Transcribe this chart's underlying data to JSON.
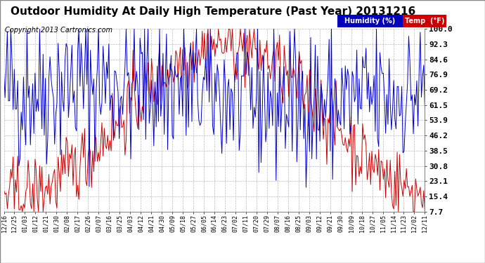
{
  "title": "Outdoor Humidity At Daily High Temperature (Past Year) 20131216",
  "copyright": "Copyright 2013 Cartronics.com",
  "yticks": [
    7.7,
    15.4,
    23.1,
    30.8,
    38.5,
    46.2,
    53.9,
    61.5,
    69.2,
    76.9,
    84.6,
    92.3,
    100.0
  ],
  "ymin": 7.7,
  "ymax": 100.0,
  "legend_humidity_label": "Humidity (%)",
  "legend_temp_label": "Temp  (°F)",
  "legend_humidity_bg": "#0000bb",
  "legend_temp_bg": "#cc0000",
  "humidity_color": "#0000cc",
  "temp_color": "#cc0000",
  "grid_color": "#bbbbbb",
  "bg_color": "#ffffff",
  "title_fontsize": 11,
  "copyright_fontsize": 7,
  "ytick_fontsize": 8,
  "xtick_fontsize": 6,
  "xtick_labels": [
    "12/16",
    "12/25",
    "01/03",
    "01/12",
    "01/21",
    "01/30",
    "02/08",
    "02/17",
    "02/26",
    "03/07",
    "03/16",
    "03/25",
    "04/03",
    "04/12",
    "04/21",
    "04/30",
    "05/09",
    "05/18",
    "05/27",
    "06/05",
    "06/14",
    "06/23",
    "07/02",
    "07/11",
    "07/20",
    "07/29",
    "08/07",
    "08/16",
    "08/25",
    "09/03",
    "09/12",
    "09/21",
    "09/30",
    "10/09",
    "10/18",
    "10/27",
    "11/05",
    "11/14",
    "11/23",
    "12/02",
    "12/11"
  ],
  "n_points": 366,
  "humidity_seed": 42,
  "temp_seed": 42
}
